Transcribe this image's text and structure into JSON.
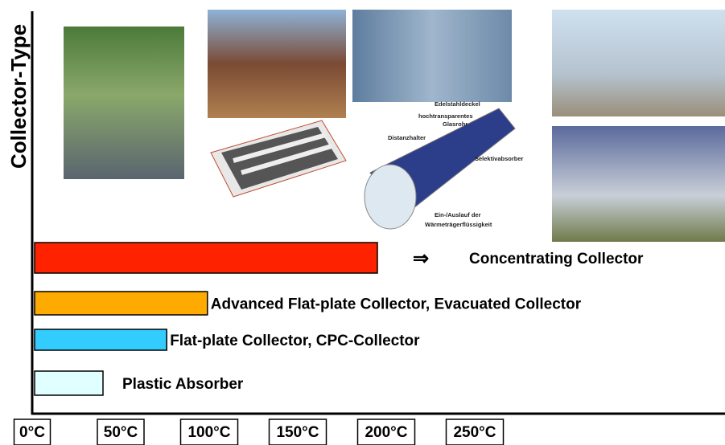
{
  "chart_data": {
    "type": "hbar",
    "y_label": "Collector-Type",
    "categories": [
      "Plastic Absorber",
      "Flat-plate Collector, CPC-Collector",
      "Advanced Flat-plate Collector, Evacuated Collector",
      "Concentrating Collector"
    ],
    "values": [
      40,
      76,
      99,
      195
    ],
    "colors": [
      "#e0ffff",
      "#33ccff",
      "#ffaa00",
      "#ff2200"
    ],
    "arrow": "⇒",
    "xlim": [
      0,
      390
    ],
    "xticks": [
      {
        "value": 0,
        "label": "0°C"
      },
      {
        "value": 50,
        "label": "50°C"
      },
      {
        "value": 100,
        "label": "100°C"
      },
      {
        "value": 150,
        "label": "150°C"
      },
      {
        "value": 200,
        "label": "200°C"
      },
      {
        "value": 250,
        "label": "250°C"
      }
    ],
    "diagram_labels": [
      "Edelstahldeckel",
      "hochtransparentes",
      "Glasrohr",
      "Distanzhalter",
      "Selektivabsorber",
      "Ein-/Auslauf der",
      "Wärmeträgerflüssigkeit"
    ]
  }
}
